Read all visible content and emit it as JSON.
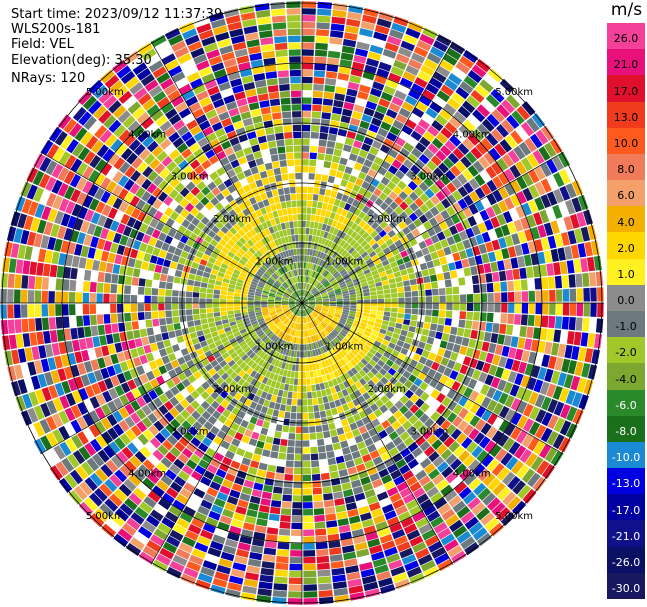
{
  "header": {
    "start_time": "Start time: 2023/09/12 11:37:39",
    "instrument": "WLS200s-181",
    "field": "Field: VEL",
    "elevation": "Elevation(deg): 35.30",
    "nrays": "NRays: 120"
  },
  "colorbar": {
    "unit": "m/s",
    "ticks": [
      "26.0",
      "21.0",
      "17.0",
      "13.0",
      "10.0",
      "8.0",
      "6.0",
      "4.0",
      "2.0",
      "1.0",
      "0.0",
      "-1.0",
      "-2.0",
      "-4.0",
      "-6.0",
      "-8.0",
      "-10.0",
      "-13.0",
      "-17.0",
      "-21.0",
      "-26.0",
      "-30.0"
    ],
    "colors": [
      "#f5409a",
      "#e8107a",
      "#e0102c",
      "#f03c1c",
      "#ff5a1e",
      "#f07a5a",
      "#f4a06a",
      "#f4b000",
      "#ffd700",
      "#fff020",
      "#8c8c8c",
      "#6c7a80",
      "#a0c828",
      "#7ca830",
      "#2a8a2a",
      "#1a6f1a",
      "#1a8ad4",
      "#0000e0",
      "#0000a0",
      "#10108a",
      "#0a1064",
      "#181860"
    ]
  },
  "chart_data": {
    "type": "heatmap",
    "projection": "polar PPI",
    "field": "VEL",
    "units": "m/s",
    "nrays": 120,
    "elevation_deg": 35.3,
    "range_ring_labels": [
      "1.00km",
      "2.00km",
      "3.00km",
      "4.00km",
      "5.00km"
    ],
    "value_min": -30.0,
    "value_max": 26.0
  }
}
